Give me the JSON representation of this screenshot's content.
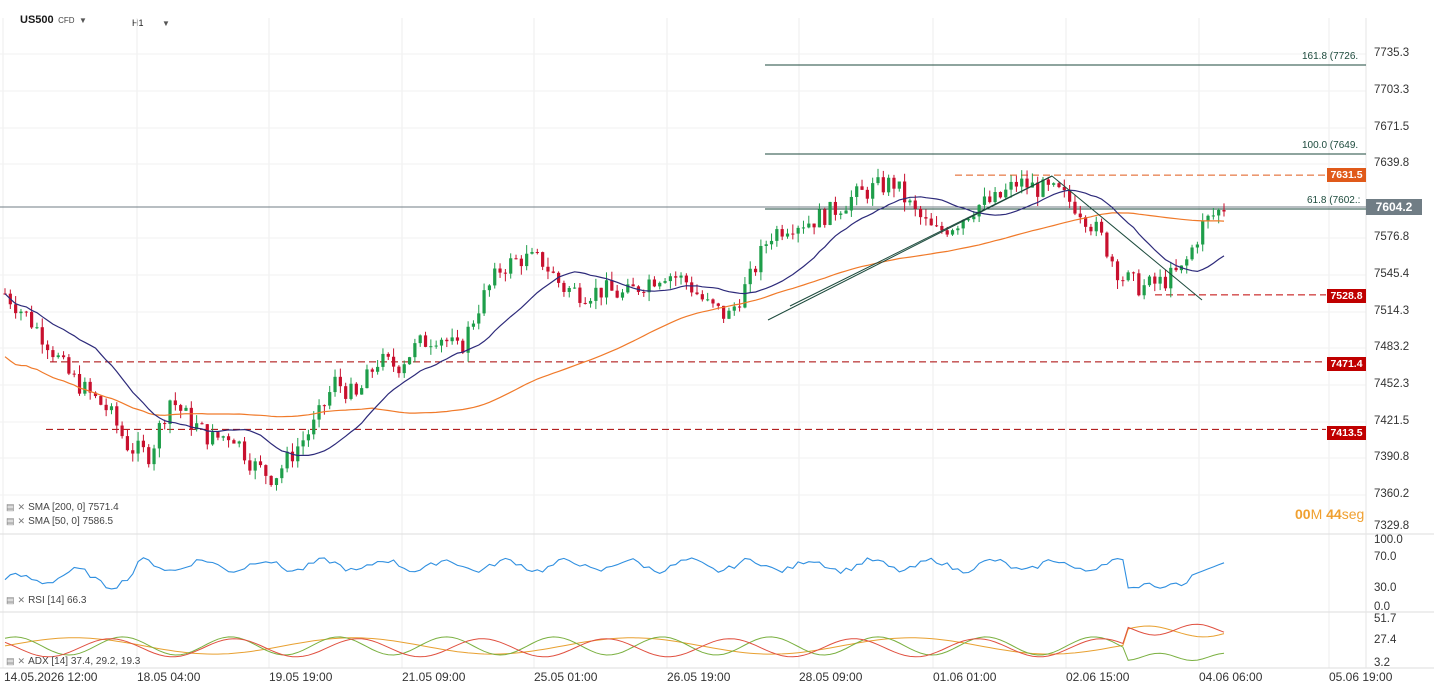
{
  "header": {
    "symbol": "US500",
    "symbol_type": "CFD",
    "timeframe": "H1"
  },
  "price_axis": {
    "labels": [
      "7735.3",
      "7703.3",
      "7671.5",
      "7639.8",
      "7576.8",
      "7545.4",
      "7514.3",
      "7483.2",
      "7452.3",
      "7421.5",
      "7390.8",
      "7360.2",
      "7329.8"
    ],
    "current_price": "7604.2",
    "current_price_color": "#707d85"
  },
  "levels": [
    {
      "label": "7631.5",
      "color": "#e05a1a"
    },
    {
      "label": "7528.8",
      "color": "#c00000"
    },
    {
      "label": "7471.4",
      "color": "#c00000"
    },
    {
      "label": "7413.5",
      "color": "#c00000"
    }
  ],
  "fibonacci": [
    {
      "label": "161.8 (7726."
    },
    {
      "label": "100.0 (7649."
    },
    {
      "label": "61.8 (7602.:"
    }
  ],
  "time_axis": [
    "14.05.2026 12:00",
    "18.05 04:00",
    "19.05 19:00",
    "21.05 09:00",
    "25.05 01:00",
    "26.05 19:00",
    "28.05 09:00",
    "01.06 01:00",
    "02.06 15:00",
    "04.06 06:00",
    "05.06 19:00"
  ],
  "indicators": {
    "sma200": "SMA [200, 0] 7571.4",
    "sma50": "SMA [50, 0] 7586.5",
    "rsi": "RSI [14] 66.3",
    "adx": "ADX [14] 37.4, 29.2, 19.3"
  },
  "rsi_axis": [
    "100.0",
    "70.0",
    "30.0",
    "0.0"
  ],
  "adx_axis": [
    "51.7",
    "27.4",
    "3.2"
  ],
  "countdown": {
    "minutes": "00",
    "m_unit": "M",
    "seconds": "44",
    "s_unit": "seg"
  },
  "colors": {
    "bull": "#1e9e4a",
    "bear": "#c8102e",
    "sma50": "#2d2a7a",
    "sma200": "#f07a2a",
    "rsi": "#2f8fe0",
    "adx": "#e8a030",
    "di_plus": "#7ab040",
    "di_minus": "#e05040",
    "fib": "#1c4a3c"
  },
  "chart_data": {
    "type": "candlestick",
    "approx_close_path": [
      7530,
      7512,
      7490,
      7462,
      7445,
      7430,
      7398,
      7392,
      7440,
      7420,
      7405,
      7410,
      7383,
      7372,
      7395,
      7418,
      7455,
      7440,
      7472,
      7468,
      7486,
      7495,
      7480,
      7522,
      7552,
      7560,
      7558,
      7535,
      7530,
      7533,
      7528,
      7540,
      7548,
      7540,
      7520,
      7510,
      7540,
      7580,
      7590,
      7592,
      7600,
      7612,
      7620,
      7625,
      7600,
      7582,
      7590,
      7605,
      7610,
      7625,
      7620,
      7616,
      7603,
      7580,
      7545,
      7535,
      7540,
      7550,
      7590,
      7604
    ],
    "current": 7604.2,
    "ylim": [
      7329.8,
      7735.3
    ]
  }
}
